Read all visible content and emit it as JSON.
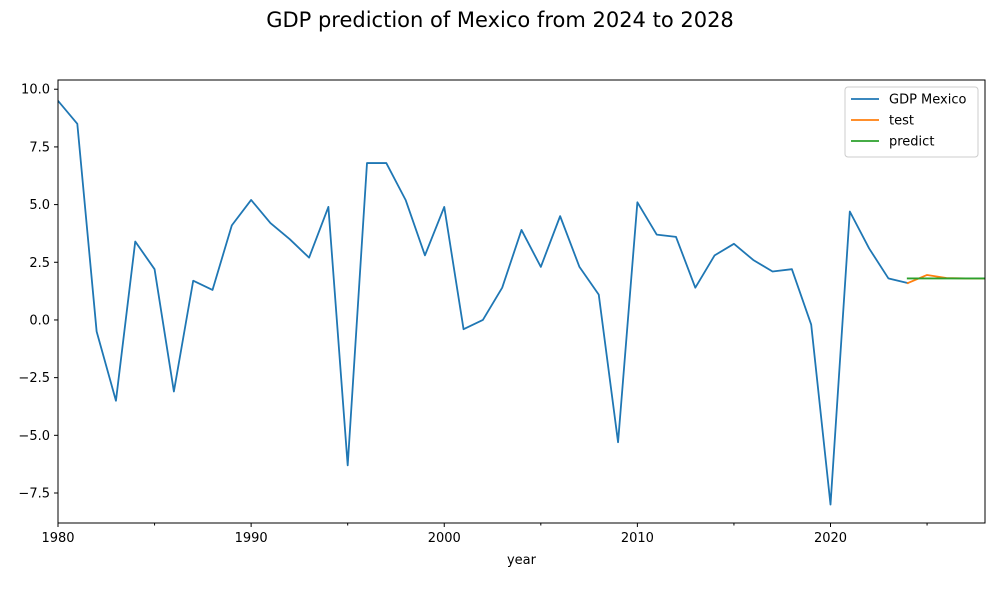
{
  "chart_data": {
    "type": "line",
    "title": "GDP prediction of Mexico from 2024 to 2028",
    "xlabel": "year",
    "ylabel": "",
    "xlim": [
      1980,
      2028
    ],
    "ylim": [
      -8.8,
      10.4
    ],
    "x_ticks": [
      1980,
      1990,
      2000,
      2010,
      2020
    ],
    "x_tick_labels": [
      "1980",
      "1990",
      "2000",
      "2010",
      "2020"
    ],
    "x_minor_ticks": [
      1985,
      1995,
      2005,
      2015,
      2025
    ],
    "y_ticks": [
      -7.5,
      -5.0,
      -2.5,
      0.0,
      2.5,
      5.0,
      7.5,
      10.0
    ],
    "y_tick_labels": [
      "−7.5",
      "−5.0",
      "−2.5",
      "0.0",
      "2.5",
      "5.0",
      "7.5",
      "10.0"
    ],
    "grid": false,
    "legend_position": "top-right",
    "series": [
      {
        "name": "GDP Mexico",
        "color": "#1f77b4",
        "x": [
          1980,
          1981,
          1982,
          1983,
          1984,
          1985,
          1986,
          1987,
          1988,
          1989,
          1990,
          1991,
          1992,
          1993,
          1994,
          1995,
          1996,
          1997,
          1998,
          1999,
          2000,
          2001,
          2002,
          2003,
          2004,
          2005,
          2006,
          2007,
          2008,
          2009,
          2010,
          2011,
          2012,
          2013,
          2014,
          2015,
          2016,
          2017,
          2018,
          2019,
          2020,
          2021,
          2022,
          2023,
          2024
        ],
        "values": [
          9.5,
          8.5,
          -0.5,
          -3.5,
          3.4,
          2.2,
          -3.1,
          1.7,
          1.3,
          4.1,
          5.2,
          4.2,
          3.5,
          2.7,
          4.9,
          -6.3,
          6.8,
          6.8,
          5.2,
          2.8,
          4.9,
          -0.4,
          0.0,
          1.4,
          3.9,
          2.3,
          4.5,
          2.3,
          1.1,
          -5.3,
          5.1,
          3.7,
          3.6,
          1.4,
          2.8,
          3.3,
          2.6,
          2.1,
          2.2,
          -0.2,
          -8.0,
          4.7,
          3.1,
          1.8,
          1.6
        ]
      },
      {
        "name": "test",
        "color": "#ff7f0e",
        "x": [
          2024,
          2025,
          2026,
          2027,
          2028
        ],
        "values": [
          1.6,
          1.95,
          1.82,
          1.8,
          1.8
        ]
      },
      {
        "name": "predict",
        "color": "#2ca02c",
        "x": [
          2024,
          2025,
          2026,
          2027,
          2028
        ],
        "values": [
          1.8,
          1.8,
          1.8,
          1.8,
          1.8
        ]
      }
    ]
  }
}
